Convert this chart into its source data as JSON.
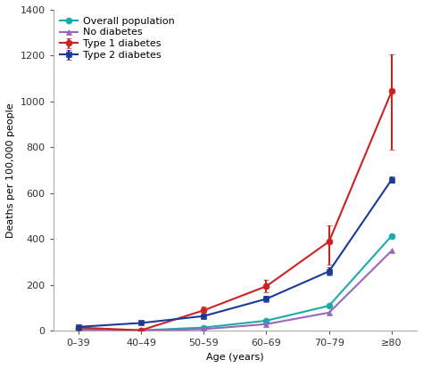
{
  "x_labels": [
    "0–39",
    "40–49",
    "50–59",
    "60–69",
    "70–79",
    "≥80"
  ],
  "x_positions": [
    0,
    1,
    2,
    3,
    4,
    5
  ],
  "overall_population": {
    "y": [
      8,
      3,
      15,
      45,
      110,
      415
    ],
    "color": "#1AACAC",
    "marker": "o",
    "label": "Overall population",
    "yerr_low": [
      0,
      0,
      0,
      0,
      0,
      0
    ],
    "yerr_high": [
      0,
      0,
      0,
      0,
      0,
      0
    ]
  },
  "type1_diabetes": {
    "y": [
      15,
      3,
      90,
      195,
      390,
      1045
    ],
    "color": "#CC2222",
    "marker": "o",
    "label": "Type 1 diabetes",
    "yerr_low": [
      0,
      0,
      18,
      28,
      100,
      255
    ],
    "yerr_high": [
      0,
      0,
      18,
      28,
      70,
      160
    ]
  },
  "type2_diabetes": {
    "y": [
      18,
      35,
      65,
      140,
      260,
      660
    ],
    "color": "#1A3A9A",
    "marker": "s",
    "label": "Type 2 diabetes",
    "yerr_low": [
      0,
      0,
      8,
      12,
      18,
      15
    ],
    "yerr_high": [
      0,
      0,
      8,
      12,
      18,
      15
    ]
  },
  "no_diabetes": {
    "y": [
      3,
      2,
      8,
      30,
      80,
      350
    ],
    "color": "#9966BB",
    "marker": "^",
    "label": "No diabetes",
    "yerr_low": [
      0,
      0,
      0,
      0,
      0,
      0
    ],
    "yerr_high": [
      0,
      0,
      0,
      0,
      0,
      0
    ]
  },
  "ylabel": "Deaths per 100,000 people",
  "xlabel": "Age (years)",
  "ylim": [
    0,
    1400
  ],
  "yticks": [
    0,
    200,
    400,
    600,
    800,
    1000,
    1200,
    1400
  ],
  "axis_fontsize": 8,
  "legend_fontsize": 8,
  "tick_fontsize": 8,
  "background_color": "#FFFFFF",
  "spine_color": "#AAAAAA",
  "marker_size": 5,
  "line_width": 1.5,
  "cap_size": 2.5
}
